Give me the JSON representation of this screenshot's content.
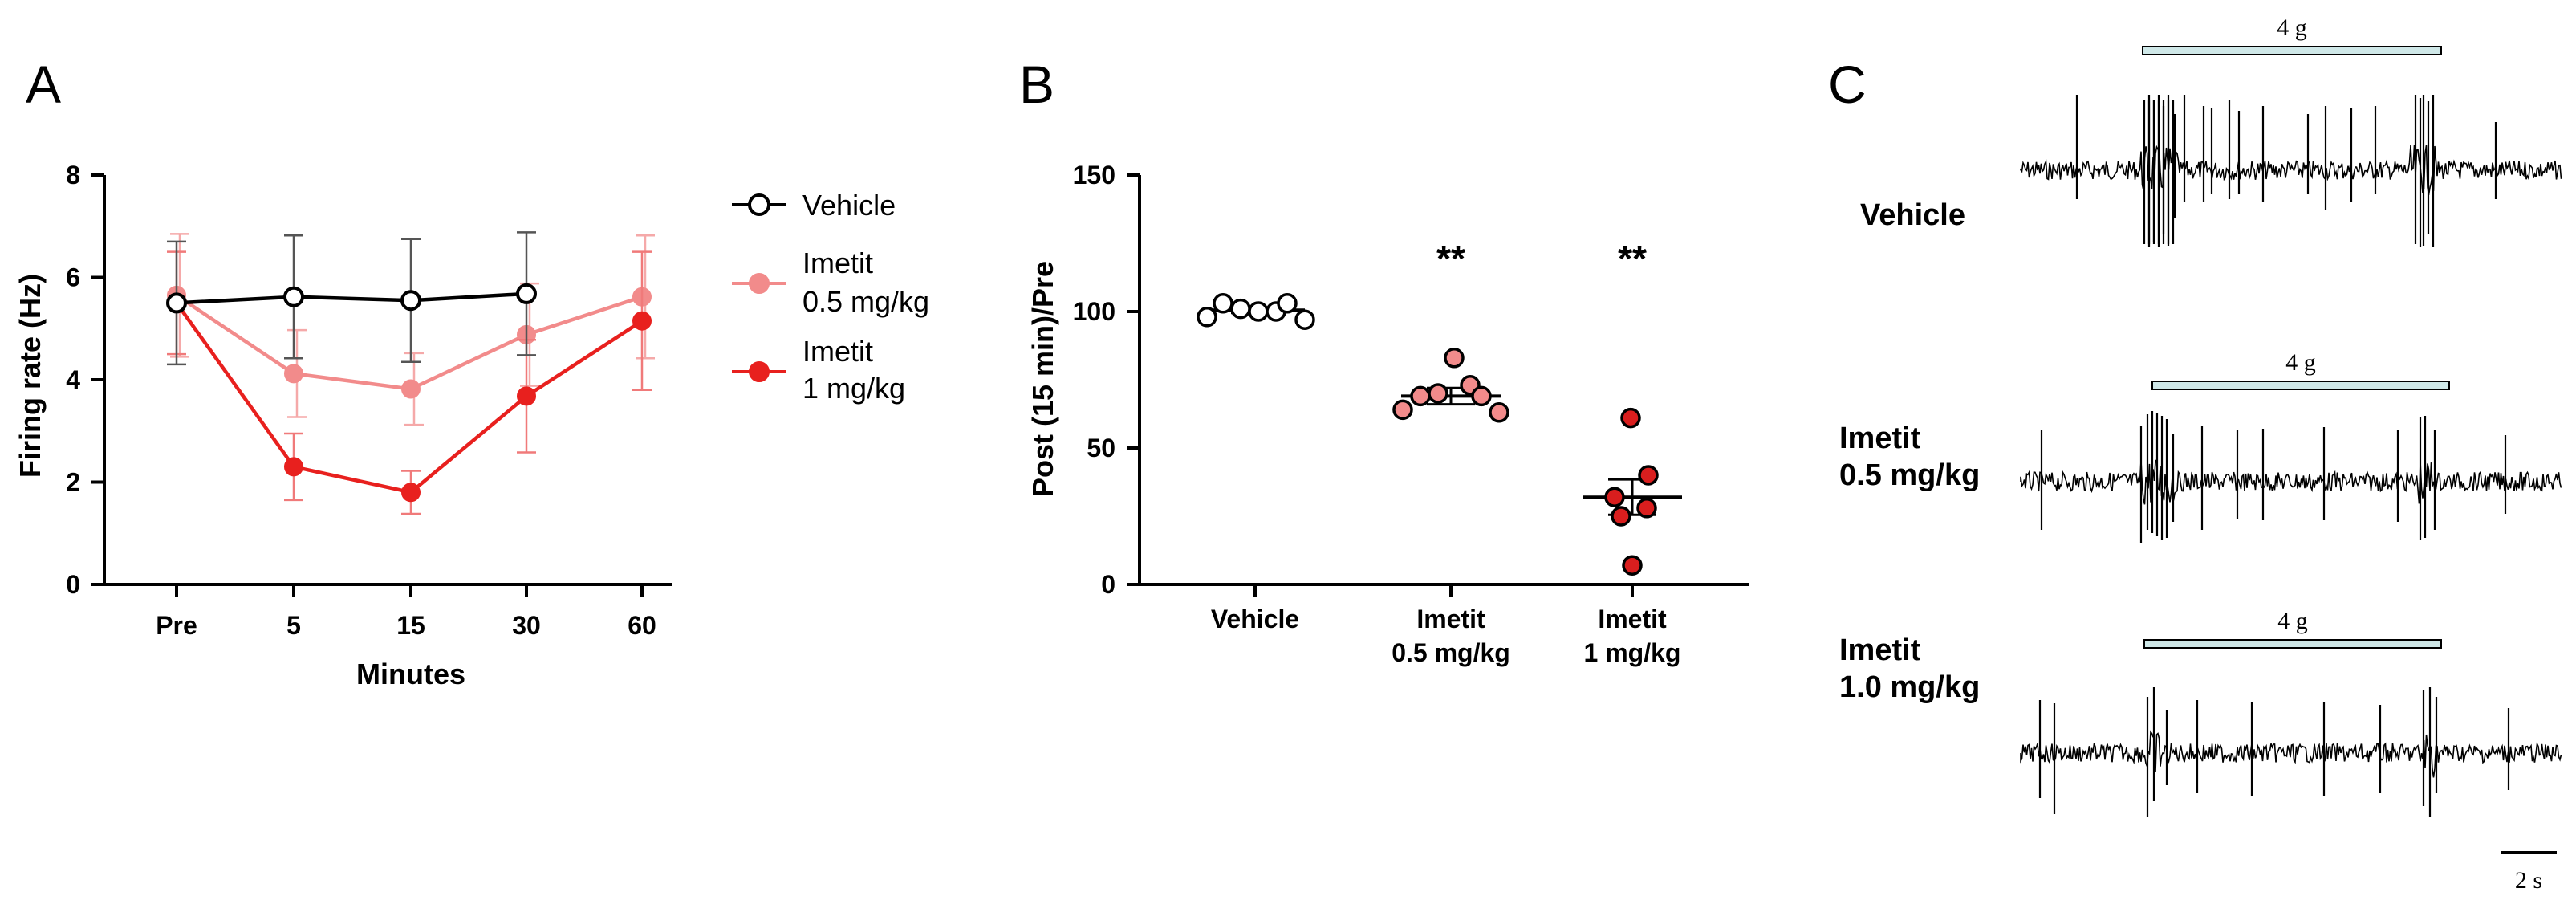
{
  "chart_data": [
    {
      "panel": "A",
      "type": "line",
      "xlabel": "Minutes",
      "ylabel": "Firing rate (Hz)",
      "categories": [
        "Pre",
        "5",
        "15",
        "30",
        "60"
      ],
      "ylim": [
        0,
        8
      ],
      "yticks": [
        "0",
        "2",
        "4",
        "6",
        "8"
      ],
      "series": [
        {
          "name": "Vehicle",
          "color": "#000000",
          "marker": "open-circle",
          "values": [
            5.5,
            5.62,
            5.55,
            5.68,
            null
          ],
          "err": [
            1.2,
            1.2,
            1.2,
            1.2,
            null
          ]
        },
        {
          "name": "Imetit 0.5 mg/kg",
          "color": "#f28b8b",
          "marker": "filled-circle",
          "values": [
            5.65,
            4.12,
            3.82,
            4.88,
            5.62
          ],
          "err": [
            1.2,
            0.85,
            0.7,
            1.0,
            1.2
          ]
        },
        {
          "name": "Imetit 1 mg/kg",
          "color": "#e8201e",
          "marker": "filled-circle",
          "values": [
            5.5,
            2.3,
            1.8,
            3.68,
            5.15
          ],
          "err": [
            1.0,
            0.65,
            0.42,
            1.1,
            1.35
          ]
        }
      ],
      "legend": [
        {
          "line1": "Vehicle",
          "line2": ""
        },
        {
          "line1": "Imetit",
          "line2": "0.5 mg/kg"
        },
        {
          "line1": "Imetit",
          "line2": "1 mg/kg"
        }
      ]
    },
    {
      "panel": "B",
      "type": "scatter",
      "ylabel": "Post (15 min)/Pre",
      "ylim": [
        0,
        150
      ],
      "yticks": [
        "0",
        "50",
        "100",
        "150"
      ],
      "groups": [
        {
          "name": "Vehicle",
          "line1": "Vehicle",
          "line2": "",
          "color": "#ffffff",
          "edge": "#000000",
          "points": [
            98,
            103,
            101,
            100,
            100,
            103,
            97
          ],
          "mean": 100.5,
          "sem": 1.0,
          "sig": ""
        },
        {
          "name": "Imetit 0.5 mg/kg",
          "line1": "Imetit",
          "line2": "0.5 mg/kg",
          "color": "#f28b8b",
          "edge": "#000000",
          "points": [
            64,
            69,
            70,
            83,
            73,
            69,
            63
          ],
          "mean": 69,
          "sem": 3,
          "sig": "**"
        },
        {
          "name": "Imetit 1 mg/kg",
          "line1": "Imetit",
          "line2": "1 mg/kg",
          "color": "#d91e1e",
          "edge": "#000000",
          "points": [
            61,
            40,
            32,
            28,
            25,
            7
          ],
          "mean": 32,
          "sem": 6.5,
          "sig": "**"
        }
      ]
    }
  ],
  "panel_labels": {
    "a": "A",
    "b": "B",
    "c": "C"
  },
  "traces": {
    "stimulus_label": "4 g",
    "scale_bar_label": "2 s",
    "rows": [
      {
        "line1": "Vehicle",
        "line2": ""
      },
      {
        "line1": "Imetit",
        "line2": "0.5 mg/kg"
      },
      {
        "line1": "Imetit",
        "line2": "1.0 mg/kg"
      }
    ]
  }
}
